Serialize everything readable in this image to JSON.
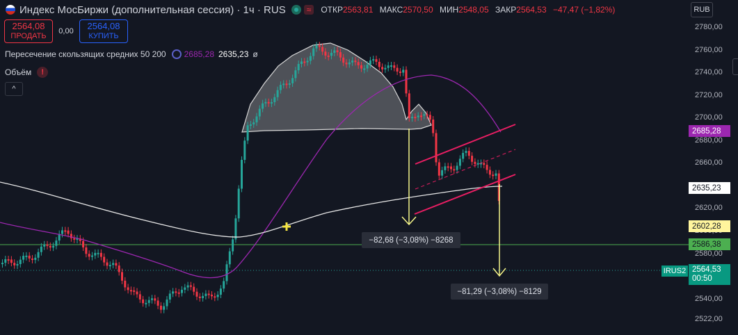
{
  "header": {
    "symbol": "Индекс МосБиржи (дополнительная сессия) · 1ч · RUS",
    "open_label": "ОТКР",
    "open": "2563,81",
    "high_label": "МАКС",
    "high": "2570,50",
    "low_label": "МИН",
    "low": "2548,05",
    "close_label": "ЗАКР",
    "close": "2564,53",
    "change": "−47,47 (−1,82%)",
    "wave_icon": "≈"
  },
  "trade": {
    "sell_price": "2564,08",
    "sell_label": "ПРОДАТЬ",
    "spread": "0,00",
    "buy_price": "2564,08",
    "buy_label": "КУПИТЬ"
  },
  "indicators": {
    "ma_name": "Пересечение скользящих средних 50 200",
    "ma50": "2685,28",
    "ma200": "2635,23",
    "ma_extra": "ø",
    "volume": "Объём",
    "volume_warn": "!",
    "collapse": "^"
  },
  "currency": "RUB",
  "axis": {
    "ticks": [
      "2780,00",
      "2760,00",
      "2740,00",
      "2720,00",
      "2700,00",
      "2680,00",
      "2660,00",
      "2640,00",
      "2620,00",
      "2600,00",
      "2580,00",
      "2560,00",
      "2540,00",
      "2522,00"
    ],
    "tick_values": [
      2780,
      2760,
      2740,
      2720,
      2700,
      2680,
      2660,
      2640,
      2620,
      2600,
      2580,
      2560,
      2540,
      2522
    ]
  },
  "price_tags": {
    "ma50": "2685,28",
    "ma200": "2635,23",
    "level_yellow": "2602,28",
    "level_green": "2586,38",
    "last": "2564,53",
    "countdown": "00:50",
    "last_symbol": "IRUS2"
  },
  "tooltips": {
    "move1": "−82,68 (−3,08%) −8268",
    "move2": "−81,29 (−3,08%) −8129"
  },
  "colors": {
    "bg": "#131722",
    "up": "#26a69a",
    "down": "#f23645",
    "ma50": "#9c27b0",
    "ma200": "#e0e0e0",
    "channel": "#e91e63",
    "arrow": "#f5f589",
    "level": "#4caf50"
  }
}
